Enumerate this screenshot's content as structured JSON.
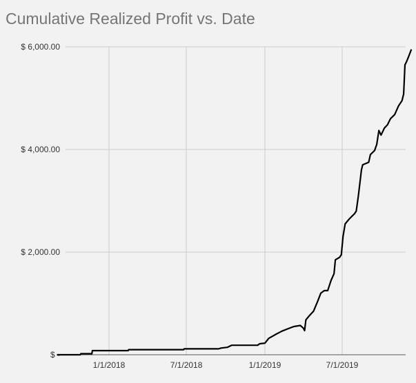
{
  "chart_data": {
    "type": "line",
    "title": "Cumulative Realized Profit vs. Date",
    "xlabel": "",
    "ylabel": "",
    "ylim": [
      0,
      6000
    ],
    "xlim": [
      "2017-09-01",
      "2019-12-15"
    ],
    "grid": true,
    "legend": "none",
    "y_ticks": [
      {
        "value": 6000,
        "label": "$ 6,000.00"
      },
      {
        "value": 4000,
        "label": "$ 4,000.00"
      },
      {
        "value": 2000,
        "label": "$ 2,000.00"
      },
      {
        "value": 0,
        "label": "$ -"
      }
    ],
    "x_ticks": [
      {
        "date": "2018-01-01",
        "label": "1/1/2018"
      },
      {
        "date": "2018-07-01",
        "label": "7/1/2018"
      },
      {
        "date": "2019-01-01",
        "label": "1/1/2019"
      },
      {
        "date": "2019-07-01",
        "label": "7/1/2019"
      }
    ],
    "series": [
      {
        "name": "Cumulative Realized Profit",
        "color": "#000000",
        "points": [
          {
            "date": "2017-09-01",
            "value": 0
          },
          {
            "date": "2017-10-26",
            "value": 0
          },
          {
            "date": "2017-10-27",
            "value": 20
          },
          {
            "date": "2017-11-22",
            "value": 20
          },
          {
            "date": "2017-11-23",
            "value": 80
          },
          {
            "date": "2018-02-15",
            "value": 80
          },
          {
            "date": "2018-02-16",
            "value": 100
          },
          {
            "date": "2018-06-25",
            "value": 100
          },
          {
            "date": "2018-06-26",
            "value": 115
          },
          {
            "date": "2018-09-15",
            "value": 115
          },
          {
            "date": "2018-09-20",
            "value": 130
          },
          {
            "date": "2018-10-05",
            "value": 145
          },
          {
            "date": "2018-10-15",
            "value": 185
          },
          {
            "date": "2018-12-15",
            "value": 185
          },
          {
            "date": "2018-12-20",
            "value": 215
          },
          {
            "date": "2019-01-01",
            "value": 225
          },
          {
            "date": "2019-01-10",
            "value": 320
          },
          {
            "date": "2019-01-25",
            "value": 390
          },
          {
            "date": "2019-02-10",
            "value": 460
          },
          {
            "date": "2019-02-25",
            "value": 510
          },
          {
            "date": "2019-03-10",
            "value": 550
          },
          {
            "date": "2019-03-25",
            "value": 570
          },
          {
            "date": "2019-04-01",
            "value": 520
          },
          {
            "date": "2019-04-04",
            "value": 470
          },
          {
            "date": "2019-04-07",
            "value": 680
          },
          {
            "date": "2019-04-15",
            "value": 760
          },
          {
            "date": "2019-04-25",
            "value": 850
          },
          {
            "date": "2019-05-05",
            "value": 1050
          },
          {
            "date": "2019-05-12",
            "value": 1200
          },
          {
            "date": "2019-05-20",
            "value": 1250
          },
          {
            "date": "2019-05-28",
            "value": 1250
          },
          {
            "date": "2019-06-05",
            "value": 1450
          },
          {
            "date": "2019-06-12",
            "value": 1580
          },
          {
            "date": "2019-06-15",
            "value": 1850
          },
          {
            "date": "2019-06-25",
            "value": 1900
          },
          {
            "date": "2019-06-29",
            "value": 1950
          },
          {
            "date": "2019-07-03",
            "value": 2300
          },
          {
            "date": "2019-07-08",
            "value": 2550
          },
          {
            "date": "2019-07-18",
            "value": 2650
          },
          {
            "date": "2019-07-30",
            "value": 2750
          },
          {
            "date": "2019-08-03",
            "value": 2800
          },
          {
            "date": "2019-08-08",
            "value": 3100
          },
          {
            "date": "2019-08-15",
            "value": 3600
          },
          {
            "date": "2019-08-18",
            "value": 3700
          },
          {
            "date": "2019-09-01",
            "value": 3750
          },
          {
            "date": "2019-09-05",
            "value": 3900
          },
          {
            "date": "2019-09-15",
            "value": 3980
          },
          {
            "date": "2019-09-20",
            "value": 4100
          },
          {
            "date": "2019-09-25",
            "value": 4370
          },
          {
            "date": "2019-09-30",
            "value": 4280
          },
          {
            "date": "2019-10-08",
            "value": 4420
          },
          {
            "date": "2019-10-15",
            "value": 4480
          },
          {
            "date": "2019-10-22",
            "value": 4600
          },
          {
            "date": "2019-11-01",
            "value": 4680
          },
          {
            "date": "2019-11-10",
            "value": 4850
          },
          {
            "date": "2019-11-18",
            "value": 4950
          },
          {
            "date": "2019-11-22",
            "value": 5080
          },
          {
            "date": "2019-11-25",
            "value": 5650
          },
          {
            "date": "2019-11-28",
            "value": 5700
          },
          {
            "date": "2019-12-03",
            "value": 5800
          },
          {
            "date": "2019-12-10",
            "value": 5950
          }
        ]
      }
    ]
  }
}
